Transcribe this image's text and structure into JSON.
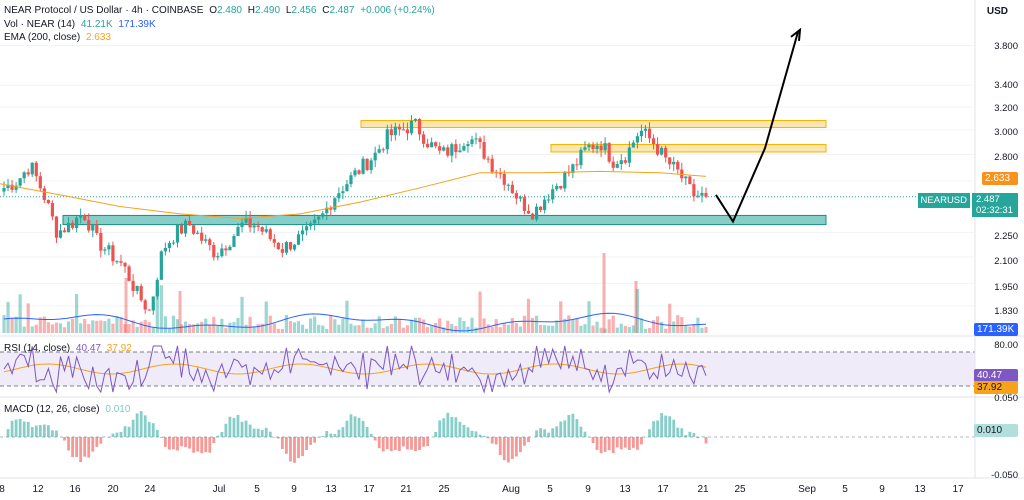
{
  "header": {
    "symbol": "NEAR Protocol / US Dollar",
    "interval": "4h",
    "exchange": "COINBASE",
    "o_label": "O",
    "o_value": "2.480",
    "h_label": "H",
    "h_value": "2.490",
    "l_label": "L",
    "l_value": "2.456",
    "c_label": "C",
    "c_value": "2.487",
    "change": "+0.006 (+0.24%)"
  },
  "vol_legend": {
    "label": "Vol · NEAR (14)",
    "v1": "41.21K",
    "v2": "171.39K"
  },
  "ema_legend": {
    "label": "EMA (200, close)",
    "value": "2.633"
  },
  "rsi_legend": {
    "label": "RSI (14, close)",
    "v1": "40.47",
    "v2": "37.92"
  },
  "macd_legend": {
    "label": "MACD (12, 26, close)",
    "value": "0.010"
  },
  "currency": "USD",
  "price_axis": [
    "3.800",
    "3.400",
    "3.200",
    "3.000",
    "2.800",
    "2.600",
    "2.250",
    "2.100",
    "1.950",
    "1.830"
  ],
  "rsi_axis": [
    "80.00",
    "0.050"
  ],
  "macd_axis": [
    "-0.050"
  ],
  "badges": {
    "ema": "2.633",
    "symbol_label": "NEARUSD",
    "last_price": "2.487",
    "countdown": "02:32:31",
    "volume": "171.39K",
    "rsi1": "40.47",
    "rsi2": "37.92",
    "macd": "0.010"
  },
  "x_axis": [
    "8",
    "12",
    "16",
    "20",
    "24",
    "Jul",
    "5",
    "9",
    "13",
    "17",
    "21",
    "25",
    "Aug",
    "5",
    "9",
    "13",
    "17",
    "21",
    "25",
    "Sep",
    "5",
    "9",
    "13",
    "17"
  ],
  "colors": {
    "up": "#26a69a",
    "down": "#ef5350",
    "ema": "#f7a21b",
    "volume_sma": "#2962ff",
    "rsi": "#7e57c2",
    "support_zone": "#26a69a",
    "resistance_zone": "#f9c74f"
  },
  "chart_data": {
    "type": "candlestick",
    "price_scale": "log",
    "price_range": [
      1.75,
      4.2
    ],
    "support_zone": [
      2.3,
      2.36
    ],
    "resistance_zones": [
      [
        3.02,
        3.08
      ],
      [
        2.82,
        2.88
      ]
    ],
    "ema_200_last": 2.633,
    "last_close": 2.487,
    "close_path": [
      2.55,
      2.6,
      2.72,
      2.5,
      2.25,
      2.3,
      2.38,
      2.2,
      2.12,
      2.05,
      1.9,
      1.8,
      2.15,
      2.25,
      2.3,
      2.2,
      2.12,
      2.2,
      2.3,
      2.3,
      2.22,
      2.15,
      2.2,
      2.25,
      2.35,
      2.5,
      2.6,
      2.7,
      2.8,
      2.95,
      3.0,
      3.05,
      2.9,
      2.8,
      2.85,
      2.95,
      2.85,
      2.7,
      2.6,
      2.45,
      2.38,
      2.5,
      2.6,
      2.7,
      2.85,
      2.9,
      2.75,
      2.8,
      3.0,
      2.9,
      2.75,
      2.65,
      2.5,
      2.487
    ],
    "projection": [
      2.5,
      2.32,
      2.85,
      3.95
    ],
    "rsi_range": [
      20,
      90
    ],
    "rsi_last": [
      40.47,
      37.92
    ],
    "macd_last": 0.01
  }
}
